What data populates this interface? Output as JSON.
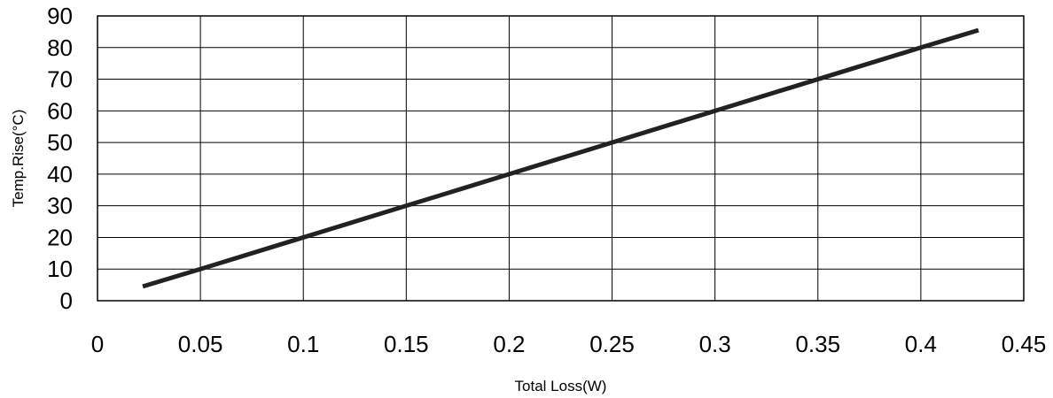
{
  "chart_data": {
    "type": "line",
    "xlabel": "Total Loss(W)",
    "ylabel": "Temp.Rise(°C)",
    "xlim": [
      0,
      0.45
    ],
    "ylim": [
      0,
      90
    ],
    "x_ticks": [
      "0",
      "0.05",
      "0.1",
      "0.15",
      "0.2",
      "0.25",
      "0.3",
      "0.35",
      "0.4",
      "0.45"
    ],
    "y_ticks": [
      "0",
      "10",
      "20",
      "30",
      "40",
      "50",
      "60",
      "70",
      "80",
      "90"
    ],
    "grid": true,
    "series": [
      {
        "x": [
          0.022,
          0.05,
          0.1,
          0.15,
          0.2,
          0.25,
          0.3,
          0.35,
          0.4,
          0.428
        ],
        "y": [
          4.5,
          10,
          20,
          30,
          40,
          50,
          60,
          70,
          80,
          85.5
        ]
      }
    ]
  }
}
